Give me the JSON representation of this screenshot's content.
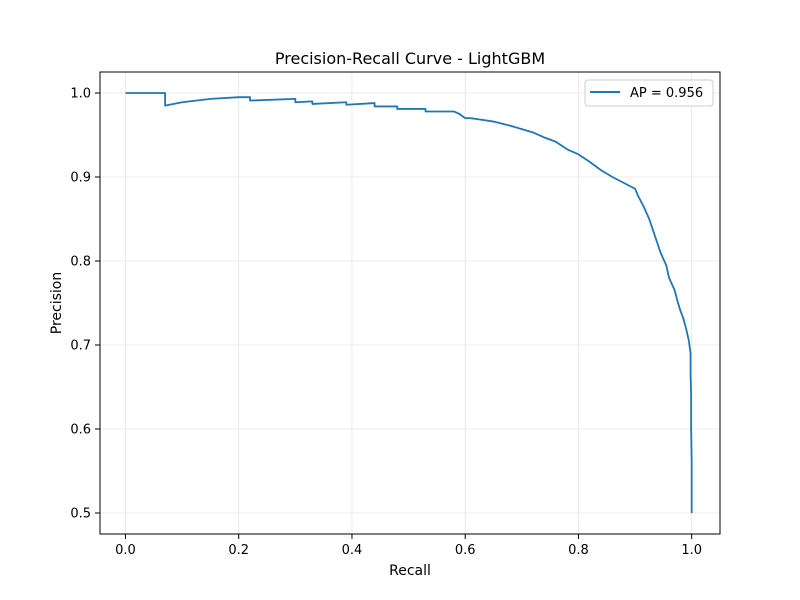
{
  "chart_data": {
    "type": "line",
    "title": "Precision-Recall Curve - LightGBM",
    "xlabel": "Recall",
    "ylabel": "Precision",
    "xlim": [
      -0.045,
      1.05
    ],
    "ylim": [
      0.475,
      1.025
    ],
    "xticks": [
      0.0,
      0.2,
      0.4,
      0.6,
      0.8,
      1.0
    ],
    "xtick_labels": [
      "0.0",
      "0.2",
      "0.4",
      "0.6",
      "0.8",
      "1.0"
    ],
    "yticks": [
      0.5,
      0.6,
      0.7,
      0.8,
      0.9,
      1.0
    ],
    "ytick_labels": [
      "0.5",
      "0.6",
      "0.7",
      "0.8",
      "0.9",
      "1.0"
    ],
    "grid": true,
    "legend_position": "top-right",
    "colors": {
      "series": "#1f77b4",
      "grid": "#e6e6e6",
      "axis": "#000000"
    },
    "series": [
      {
        "name": "AP = 0.956",
        "x": [
          0.0,
          0.07,
          0.07,
          0.1,
          0.15,
          0.2,
          0.22,
          0.22,
          0.3,
          0.3,
          0.33,
          0.33,
          0.39,
          0.39,
          0.44,
          0.44,
          0.48,
          0.48,
          0.53,
          0.53,
          0.58,
          0.59,
          0.6,
          0.61,
          0.62,
          0.65,
          0.68,
          0.7,
          0.72,
          0.74,
          0.76,
          0.78,
          0.8,
          0.82,
          0.84,
          0.86,
          0.88,
          0.9,
          0.905,
          0.915,
          0.925,
          0.935,
          0.945,
          0.955,
          0.96,
          0.97,
          0.975,
          0.98,
          0.985,
          0.99,
          0.995,
          0.998,
          0.998,
          0.999,
          0.999,
          1.0,
          1.0
        ],
        "y": [
          1.0,
          1.0,
          0.985,
          0.989,
          0.993,
          0.995,
          0.995,
          0.991,
          0.993,
          0.989,
          0.99,
          0.987,
          0.989,
          0.986,
          0.988,
          0.984,
          0.984,
          0.981,
          0.981,
          0.978,
          0.978,
          0.975,
          0.97,
          0.97,
          0.969,
          0.966,
          0.961,
          0.957,
          0.953,
          0.947,
          0.942,
          0.933,
          0.927,
          0.918,
          0.908,
          0.9,
          0.893,
          0.886,
          0.878,
          0.865,
          0.85,
          0.83,
          0.81,
          0.795,
          0.78,
          0.765,
          0.752,
          0.741,
          0.732,
          0.72,
          0.705,
          0.69,
          0.665,
          0.64,
          0.6,
          0.56,
          0.5
        ]
      }
    ]
  }
}
